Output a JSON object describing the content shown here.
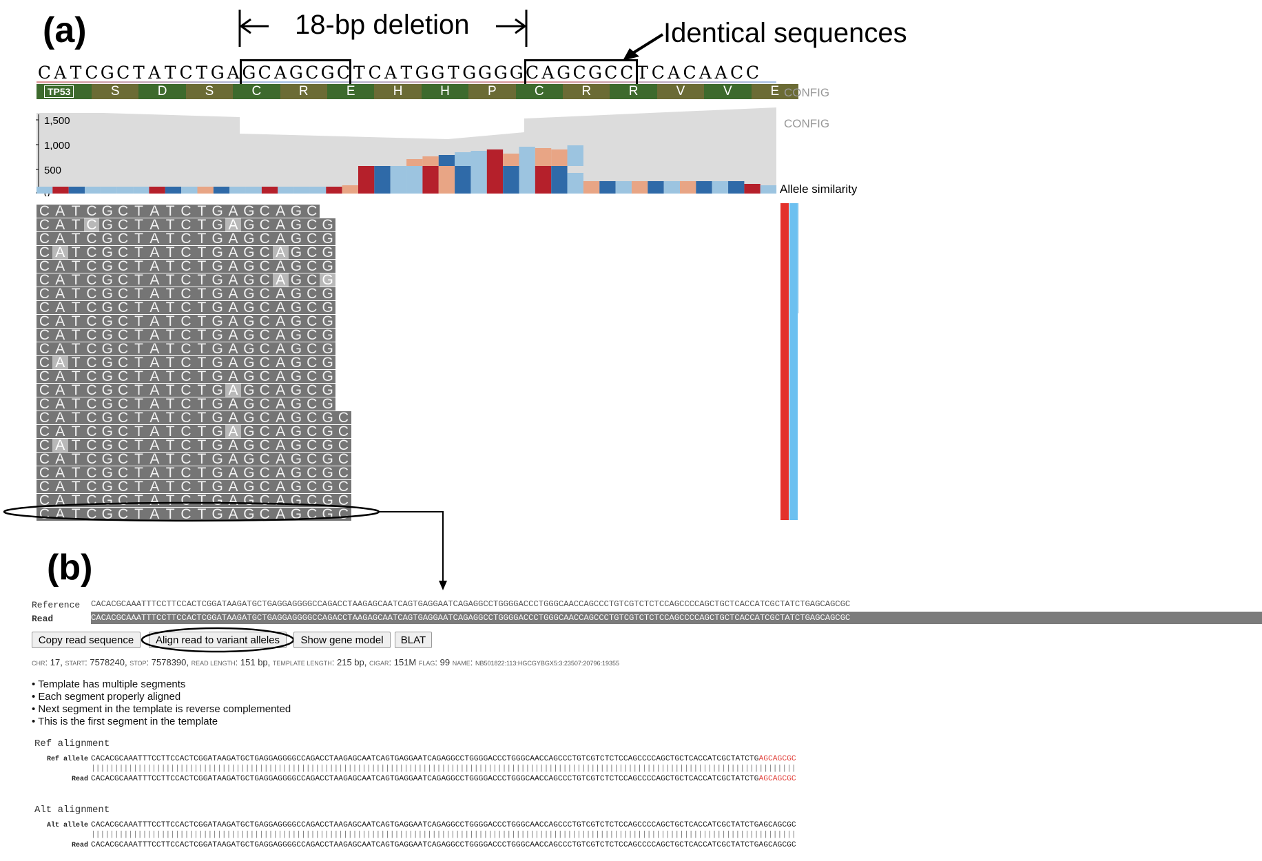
{
  "panel_a": {
    "label": "(a)",
    "deletion_label": "18-bp deletion",
    "identical_label": "Identical sequences",
    "ref_sequence": [
      "C",
      "A",
      "T",
      "C",
      "G",
      "C",
      "T",
      "A",
      "T",
      "C",
      "T",
      "G",
      "A",
      "G",
      "C",
      "A",
      "G",
      "C",
      "G",
      "C",
      "T",
      "C",
      "A",
      "T",
      "G",
      "G",
      "T",
      "G",
      "G",
      "G",
      "G",
      "C",
      "A",
      "G",
      "C",
      "G",
      "C",
      "C",
      "T",
      "C",
      "A",
      "C",
      "A",
      "A",
      "C",
      "C"
    ],
    "gene_name": "TP53",
    "amino_acids": [
      "S",
      "D",
      "S",
      "C",
      "R",
      "E",
      "H",
      "H",
      "P",
      "C",
      "R",
      "R",
      "V",
      "V",
      "E"
    ],
    "config_label_1": "CONFIG",
    "config_label_2": "CONFIG",
    "y_ticks": [
      "1,500",
      "1,000",
      "500",
      "0"
    ],
    "allele_similarity_label": "Allele similarity",
    "reads": [
      {
        "seq": "CATCGCTATCTGAGCAGC",
        "mm": []
      },
      {
        "seq": "CATCGCTATCTGAGCAGCG",
        "mm": [
          3,
          12
        ]
      },
      {
        "seq": "CATCGCTATCTGAGCAGCG",
        "mm": []
      },
      {
        "seq": "CATCGCTATCTGAGCAGCG",
        "mm": [
          1,
          15
        ]
      },
      {
        "seq": "CATCGCTATCTGAGCAGCG",
        "mm": []
      },
      {
        "seq": "CATCGCTATCTGAGCAGCG",
        "mm": [
          15,
          18
        ]
      },
      {
        "seq": "CATCGCTATCTGAGCAGCG",
        "mm": []
      },
      {
        "seq": "CATCGCTATCTGAGCAGCG",
        "mm": []
      },
      {
        "seq": "CATCGCTATCTGAGCAGCG",
        "mm": []
      },
      {
        "seq": "CATCGCTATCTGAGCAGCG",
        "mm": []
      },
      {
        "seq": "CATCGCTATCTGAGCAGCG",
        "mm": []
      },
      {
        "seq": "CATCGCTATCTGAGCAGCG",
        "mm": [
          1
        ]
      },
      {
        "seq": "CATCGCTATCTGAGCAGCG",
        "mm": []
      },
      {
        "seq": "CATCGCTATCTGAGCAGCG",
        "mm": [
          12
        ]
      },
      {
        "seq": "CATCGCTATCTGAGCAGCG",
        "mm": []
      },
      {
        "seq": "CATCGCTATCTGAGCAGCGC",
        "mm": []
      },
      {
        "seq": "CATCGCTATCTGAGCAGCGC",
        "mm": [
          12
        ]
      },
      {
        "seq": "CATCGCTATCTGAGCAGCGC",
        "mm": [
          1
        ]
      },
      {
        "seq": "CATCGCTATCTGAGCAGCGC",
        "mm": []
      },
      {
        "seq": "CATCGCTATCTGAGCAGCGC",
        "mm": []
      },
      {
        "seq": "CATCGCTATCTGAGCAGCGC",
        "mm": []
      },
      {
        "seq": "CATCGCTATCTGAGCAGCGC",
        "mm": []
      },
      {
        "seq": "CATCGCTATCTGAGCAGCGC",
        "mm": []
      }
    ]
  },
  "panel_b": {
    "label": "(b)",
    "reference_label": "Reference",
    "read_label": "Read",
    "reference_seq": "CACACGCAAATTTCCTTCCACTCGGATAAGATGCTGAGGAGGGGCCAGACCTAAGAGCAATCAGTGAGGAATCAGAGGCCTGGGGACCCTGGGCAACCAGCCCTGTCGTCTCTCCAGCCCCAGCTGCTCACCATCGCTATCTGAGCAGCGC",
    "read_seq": "CACACGCAAATTTCCTTCCACTCGGATAAGATGCTGAGGAGGGGCCAGACCTAAGAGCAATCAGTGAGGAATCAGAGGCCTGGGGACCCTGGGCAACCAGCCCTGTCGTCTCTCCAGCCCCAGCTGCTCACCATCGCTATCTGAGCAGCGC",
    "buttons": {
      "copy": "Copy read sequence",
      "align": "Align read to variant alleles",
      "gene_model": "Show gene model",
      "blat": "BLAT"
    },
    "info": {
      "chr_k": "chr",
      "chr_v": "17",
      "start_k": "start",
      "start_v": "7578240",
      "stop_k": "stop",
      "stop_v": "7578390",
      "rl_k": "read length",
      "rl_v": "151 bp",
      "tl_k": "template length",
      "tl_v": "215 bp",
      "cigar_k": "cigar",
      "cigar_v": "151M",
      "flag_k": "flag",
      "flag_v": "99",
      "name_k": "name",
      "name_v": "NB501822:113:HGCGYBGX5:3:23507:20796:19355"
    },
    "flags": [
      "Template has multiple segments",
      "Each segment properly aligned",
      "Next segment in the template is reverse complemented",
      "This is the first segment in the template"
    ],
    "ref_alignment": {
      "title": "Ref alignment",
      "allele_label": "Ref allele",
      "read_label": "Read",
      "seq_main": "CACACGCAAATTTCCTTCCACTCGGATAAGATGCTGAGGAGGGGCCAGACCTAAGAGCAATCAGTGAGGAATCAGAGGCCTGGGGACCCTGGGCAACCAGCCCTGTCGTCTCTCCAGCCCCAGCTGCTCACCATCGCTATCTG",
      "seq_tail": "AGCAGCGC"
    },
    "alt_alignment": {
      "title": "Alt alignment",
      "allele_label": "Alt allele",
      "read_label": "Read",
      "seq": "CACACGCAAATTTCCTTCCACTCGGATAAGATGCTGAGGAGGGGCCAGACCTAAGAGCAATCAGTGAGGAATCAGAGGCCTGGGGACCCTGGGCAACCAGCCCTGTCGTCTCTCCAGCCCCAGCTGCTCACCATCGCTATCTGAGCAGCGC"
    }
  },
  "colors": {
    "aa_dark": "#3d6a2d",
    "aa_olive": "#6b6b35",
    "coverage_gray": "#dcdcdc",
    "red_dark": "#b5202b",
    "red_light": "#e8a585",
    "blue_dark": "#2f6aa8",
    "blue_light": "#9cc4e0",
    "sim_red": "#e3312b",
    "sim_blue": "#6cc0f0"
  }
}
